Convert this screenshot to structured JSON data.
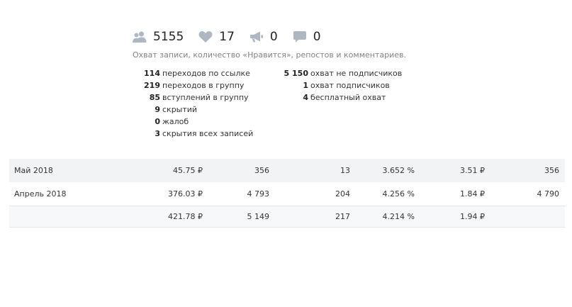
{
  "stats": {
    "reach": "5155",
    "likes": "17",
    "reposts": "0",
    "comments": "0"
  },
  "caption": "Охват записи, количество «Нравится», репостов и комментариев.",
  "metrics_left": [
    {
      "value": "114",
      "label": "переходов по ссылке"
    },
    {
      "value": "219",
      "label": "переходов в группу"
    },
    {
      "value": "85",
      "label": "вступлений в группу"
    },
    {
      "value": "9",
      "label": "скрытий"
    },
    {
      "value": "0",
      "label": "жалоб"
    },
    {
      "value": "3",
      "label": "скрытия всех записей"
    }
  ],
  "metrics_right": [
    {
      "value": "5 150",
      "label": "охват не подписчиков"
    },
    {
      "value": "1",
      "label": "охват подписчиков"
    },
    {
      "value": "4",
      "label": "бесплатный охват"
    }
  ],
  "table": {
    "rows": [
      {
        "month": "Май 2018",
        "spent": "45.75 ₽",
        "impressions": "356",
        "clicks": "13",
        "ctr": "3.652 %",
        "cpc": "3.51 ₽",
        "reach": "356"
      },
      {
        "month": "Апрель 2018",
        "spent": "376.03 ₽",
        "impressions": "4 793",
        "clicks": "204",
        "ctr": "4.256 %",
        "cpc": "1.84 ₽",
        "reach": "4 790"
      }
    ],
    "total": {
      "spent": "421.78 ₽",
      "impressions": "5 149",
      "clicks": "217",
      "ctr": "4.214 %",
      "cpc": "1.94 ₽"
    }
  },
  "colors": {
    "icon": "#aeb7c2",
    "row_shade": "#f2f3f5",
    "caption": "#828282"
  }
}
